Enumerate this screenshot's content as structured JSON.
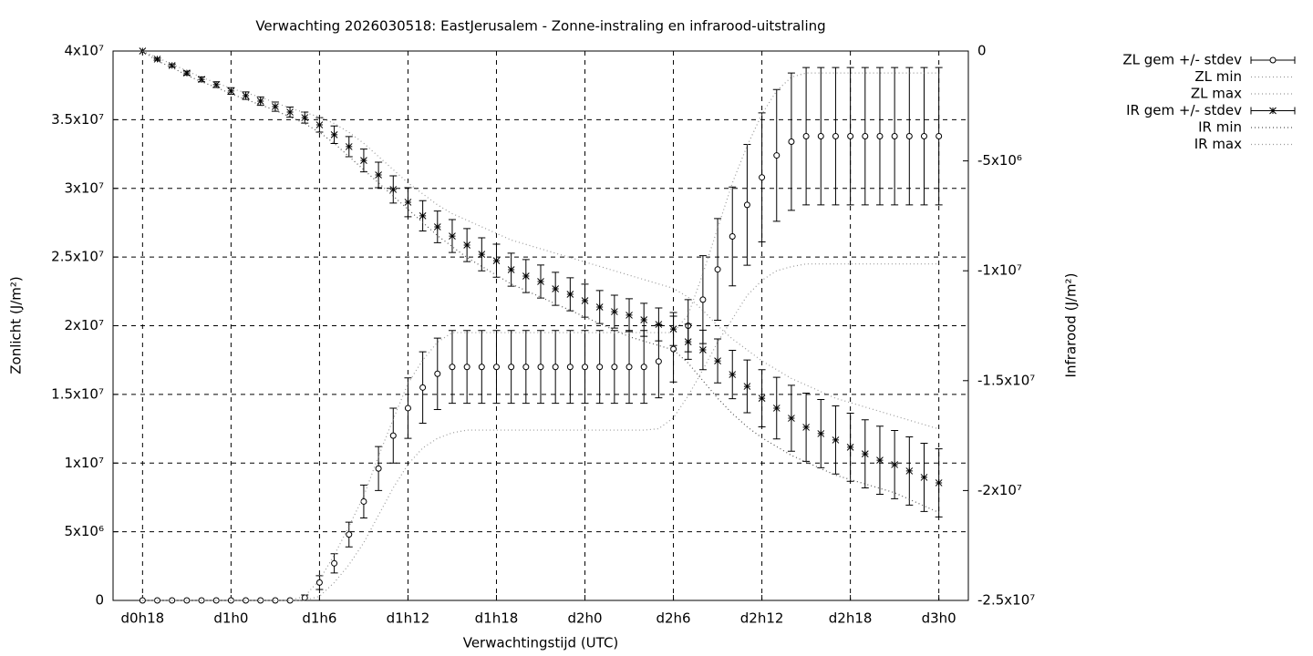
{
  "chart_data": {
    "type": "errorbar",
    "title": "Verwachting 2026030518: EastJerusalem - Zonne-instraling en infrarood-uitstraling",
    "xlabel": "Verwachtingstijd (UTC)",
    "ylabel": "Zonlicht (J/m²)",
    "y2label": "Infrarood (J/m²)",
    "grid": true,
    "legend": "outside-top-right",
    "xlim": [
      16,
      74
    ],
    "xticks": [
      {
        "value": 18,
        "label": "d0h18"
      },
      {
        "value": 24,
        "label": "d1h0"
      },
      {
        "value": 30,
        "label": "d1h6"
      },
      {
        "value": 36,
        "label": "d1h12"
      },
      {
        "value": 42,
        "label": "d1h18"
      },
      {
        "value": 48,
        "label": "d2h0"
      },
      {
        "value": 54,
        "label": "d2h6"
      },
      {
        "value": 60,
        "label": "d2h12"
      },
      {
        "value": 66,
        "label": "d2h18"
      },
      {
        "value": 72,
        "label": "d3h0"
      }
    ],
    "ylim": [
      0,
      40000000.0
    ],
    "yticks": [
      0,
      {
        "value": 5000000.0,
        "label": "5x10⁶"
      },
      {
        "value": 10000000.0,
        "label": "1x10⁷"
      },
      {
        "value": 15000000.0,
        "label": "1.5x10⁷"
      },
      {
        "value": 20000000.0,
        "label": "2x10⁷"
      },
      {
        "value": 25000000.0,
        "label": "2.5x10⁷"
      },
      {
        "value": 30000000.0,
        "label": "3x10⁷"
      },
      {
        "value": 35000000.0,
        "label": "3.5x10⁷"
      },
      {
        "value": 40000000.0,
        "label": "4x10⁷"
      }
    ],
    "y2lim": [
      -25000000.0,
      0
    ],
    "y2ticks": [
      0,
      {
        "value": -5000000.0,
        "label": "-5x10⁶"
      },
      {
        "value": -10000000.0,
        "label": "-1x10⁷"
      },
      {
        "value": -15000000.0,
        "label": "-1.5x10⁷"
      },
      {
        "value": -20000000.0,
        "label": "-2x10⁷"
      },
      {
        "value": -25000000.0,
        "label": "-2.5x10⁷"
      }
    ],
    "x": [
      18,
      19,
      20,
      21,
      22,
      23,
      24,
      25,
      26,
      27,
      28,
      29,
      30,
      31,
      32,
      33,
      34,
      35,
      36,
      37,
      38,
      39,
      40,
      41,
      42,
      43,
      44,
      45,
      46,
      47,
      48,
      49,
      50,
      51,
      52,
      53,
      54,
      55,
      56,
      57,
      58,
      59,
      60,
      61,
      62,
      63,
      64,
      65,
      66,
      67,
      68,
      69,
      70,
      71,
      72
    ],
    "series": [
      {
        "name": "ZL gem +/- stdev",
        "style": "errorbar",
        "marker": "circle",
        "color": "#000000",
        "values": [
          0,
          0,
          0,
          0,
          0,
          0,
          0,
          0,
          0,
          0,
          0,
          200000.0,
          1300000.0,
          2700000.0,
          4800000.0,
          7200000.0,
          9600000.0,
          12000000.0,
          14000000.0,
          15500000.0,
          16500000.0,
          17000000.0,
          17000000.0,
          17000000.0,
          17000000.0,
          17000000.0,
          17000000.0,
          17000000.0,
          17000000.0,
          17000000.0,
          17000000.0,
          17000000.0,
          17000000.0,
          17000000.0,
          17000000.0,
          17400000.0,
          18300000.0,
          20000000.0,
          21900000.0,
          24100000.0,
          26500000.0,
          28800000.0,
          30800000.0,
          32400000.0,
          33400000.0,
          33800000.0,
          33800000.0,
          33800000.0,
          33800000.0,
          33800000.0,
          33800000.0,
          33800000.0,
          33800000.0,
          33800000.0,
          33800000.0
        ],
        "errors": [
          0,
          0,
          0,
          0,
          0,
          0,
          0,
          0,
          0,
          0,
          0,
          200000.0,
          500000.0,
          700000.0,
          900000.0,
          1200000.0,
          1600000.0,
          2000000.0,
          2200000.0,
          2600000.0,
          2600000.0,
          2650000.0,
          2650000.0,
          2650000.0,
          2650000.0,
          2650000.0,
          2650000.0,
          2650000.0,
          2650000.0,
          2650000.0,
          2650000.0,
          2650000.0,
          2650000.0,
          2650000.0,
          2650000.0,
          2650000.0,
          2400000.0,
          1900000.0,
          3200000.0,
          3700000.0,
          3600000.0,
          4400000.0,
          4700000.0,
          4800000.0,
          5000000.0,
          5000000.0,
          5000000.0,
          5000000.0,
          5000000.0,
          5000000.0,
          5000000.0,
          5000000.0,
          5000000.0,
          5000000.0,
          5000000.0
        ]
      },
      {
        "name": "ZL min",
        "style": "dotted",
        "color": "#999999",
        "values": [
          0,
          0,
          0,
          0,
          0,
          0,
          0,
          0,
          0,
          0,
          0,
          0,
          300000.0,
          1300000.0,
          2600000.0,
          4200000.0,
          6200000.0,
          8200000.0,
          9900000.0,
          11100000.0,
          11800000.0,
          12200000.0,
          12400000.0,
          12400000.0,
          12400000.0,
          12400000.0,
          12400000.0,
          12400000.0,
          12400000.0,
          12400000.0,
          12400000.0,
          12400000.0,
          12400000.0,
          12400000.0,
          12400000.0,
          12500000.0,
          13300000.0,
          14900000.0,
          16800000.0,
          18800000.0,
          20500000.0,
          22200000.0,
          23300000.0,
          24000000.0,
          24300000.0,
          24500000.0,
          24500000.0,
          24500000.0,
          24500000.0,
          24500000.0,
          24500000.0,
          24500000.0,
          24500000.0,
          24500000.0,
          24500000.0
        ]
      },
      {
        "name": "ZL max",
        "style": "dotted",
        "color": "#999999",
        "values": [
          0,
          0,
          0,
          0,
          0,
          0,
          0,
          0,
          0,
          0,
          0,
          300000.0,
          1500000.0,
          3300000.0,
          5400000.0,
          7600000.0,
          10500000.0,
          13200000.0,
          15800000.0,
          17500000.0,
          18800000.0,
          19500000.0,
          19500000.0,
          19500000.0,
          19500000.0,
          19500000.0,
          19500000.0,
          19500000.0,
          19500000.0,
          19500000.0,
          19500000.0,
          19500000.0,
          19500000.0,
          19500000.0,
          19500000.0,
          19500000.0,
          19500000.0,
          20800000.0,
          23800000.0,
          27100000.0,
          30400000.0,
          33100000.0,
          35400000.0,
          37100000.0,
          38100000.0,
          38400000.0,
          38400000.0,
          38400000.0,
          38400000.0,
          38400000.0,
          38400000.0,
          38400000.0,
          38400000.0,
          38400000.0,
          38400000.0
        ]
      },
      {
        "name": "IR gem +/- stdev",
        "style": "errorbar",
        "marker": "star",
        "color": "#000000",
        "axis": "y2",
        "values": [
          0,
          -370000.0,
          -660000.0,
          -1000000.0,
          -1290000.0,
          -1530000.0,
          -1820000.0,
          -2030000.0,
          -2280000.0,
          -2530000.0,
          -2780000.0,
          -3030000.0,
          -3360000.0,
          -3810000.0,
          -4350000.0,
          -4980000.0,
          -5640000.0,
          -6300000.0,
          -6880000.0,
          -7500000.0,
          -8000000.0,
          -8420000.0,
          -8830000.0,
          -9250000.0,
          -9540000.0,
          -9950000.0,
          -10240000.0,
          -10490000.0,
          -10820000.0,
          -11070000.0,
          -11360000.0,
          -11650000.0,
          -11860000.0,
          -12020000.0,
          -12230000.0,
          -12440000.0,
          -12650000.0,
          -13230000.0,
          -13600000.0,
          -14100000.0,
          -14720000.0,
          -15260000.0,
          -15800000.0,
          -16250000.0,
          -16710000.0,
          -17120000.0,
          -17410000.0,
          -17700000.0,
          -18030000.0,
          -18330000.0,
          -18620000.0,
          -18820000.0,
          -19110000.0,
          -19400000.0,
          -19650000.0
        ],
        "errors": [
          0,
          50000.0,
          70000.0,
          90000.0,
          110000.0,
          130000.0,
          150000.0,
          170000.0,
          190000.0,
          210000.0,
          230000.0,
          250000.0,
          330000.0,
          400000.0,
          460000.0,
          520000.0,
          580000.0,
          620000.0,
          660000.0,
          690000.0,
          720000.0,
          750000.0,
          750000.0,
          750000.0,
          750000.0,
          750000.0,
          750000.0,
          750000.0,
          750000.0,
          750000.0,
          750000.0,
          750000.0,
          750000.0,
          750000.0,
          750000.0,
          750000.0,
          750000.0,
          800000.0,
          900000.0,
          1000000.0,
          1100000.0,
          1200000.0,
          1300000.0,
          1400000.0,
          1500000.0,
          1550000.0,
          1550000.0,
          1550000.0,
          1550000.0,
          1550000.0,
          1550000.0,
          1550000.0,
          1550000.0,
          1550000.0,
          1550000.0
        ]
      },
      {
        "name": "IR min",
        "style": "dotted",
        "color": "#555555",
        "axis": "y2",
        "values": [
          0,
          -450000.0,
          -750000.0,
          -1100000.0,
          -1400000.0,
          -1650000.0,
          -1950000.0,
          -2200000.0,
          -2450000.0,
          -2700000.0,
          -3000000.0,
          -3300000.0,
          -3700000.0,
          -4200000.0,
          -4800000.0,
          -5400000.0,
          -6000000.0,
          -6600000.0,
          -7200000.0,
          -7800000.0,
          -8400000.0,
          -8900000.0,
          -9400000.0,
          -9800000.0,
          -10200000.0,
          -10600000.0,
          -10900000.0,
          -11200000.0,
          -11500000.0,
          -11800000.0,
          -12100000.0,
          -12400000.0,
          -12700000.0,
          -13000000.0,
          -13200000.0,
          -13400000.0,
          -13600000.0,
          -14200000.0,
          -15000000.0,
          -15800000.0,
          -16500000.0,
          -17100000.0,
          -17600000.0,
          -18000000.0,
          -18400000.0,
          -18700000.0,
          -19000000.0,
          -19300000.0,
          -19500000.0,
          -19700000.0,
          -19900000.0,
          -20100000.0,
          -20400000.0,
          -20700000.0,
          -21000000.0
        ]
      },
      {
        "name": "IR max",
        "style": "dotted",
        "color": "#999999",
        "axis": "y2",
        "values": [
          0,
          -300000.0,
          -600000.0,
          -900000.0,
          -1200000.0,
          -1450000.0,
          -1700000.0,
          -1900000.0,
          -2100000.0,
          -2350000.0,
          -2600000.0,
          -2800000.0,
          -3000000.0,
          -3300000.0,
          -3700000.0,
          -4200000.0,
          -4800000.0,
          -5400000.0,
          -6000000.0,
          -6500000.0,
          -7000000.0,
          -7400000.0,
          -7700000.0,
          -8000000.0,
          -8300000.0,
          -8600000.0,
          -8800000.0,
          -9000000.0,
          -9200000.0,
          -9400000.0,
          -9600000.0,
          -9800000.0,
          -10000000.0,
          -10200000.0,
          -10400000.0,
          -10600000.0,
          -10800000.0,
          -11200000.0,
          -11800000.0,
          -12500000.0,
          -13100000.0,
          -13600000.0,
          -14100000.0,
          -14500000.0,
          -14900000.0,
          -15200000.0,
          -15500000.0,
          -15800000.0,
          -16000000.0,
          -16200000.0,
          -16400000.0,
          -16600000.0,
          -16800000.0,
          -17000000.0,
          -17200000.0
        ]
      }
    ]
  }
}
